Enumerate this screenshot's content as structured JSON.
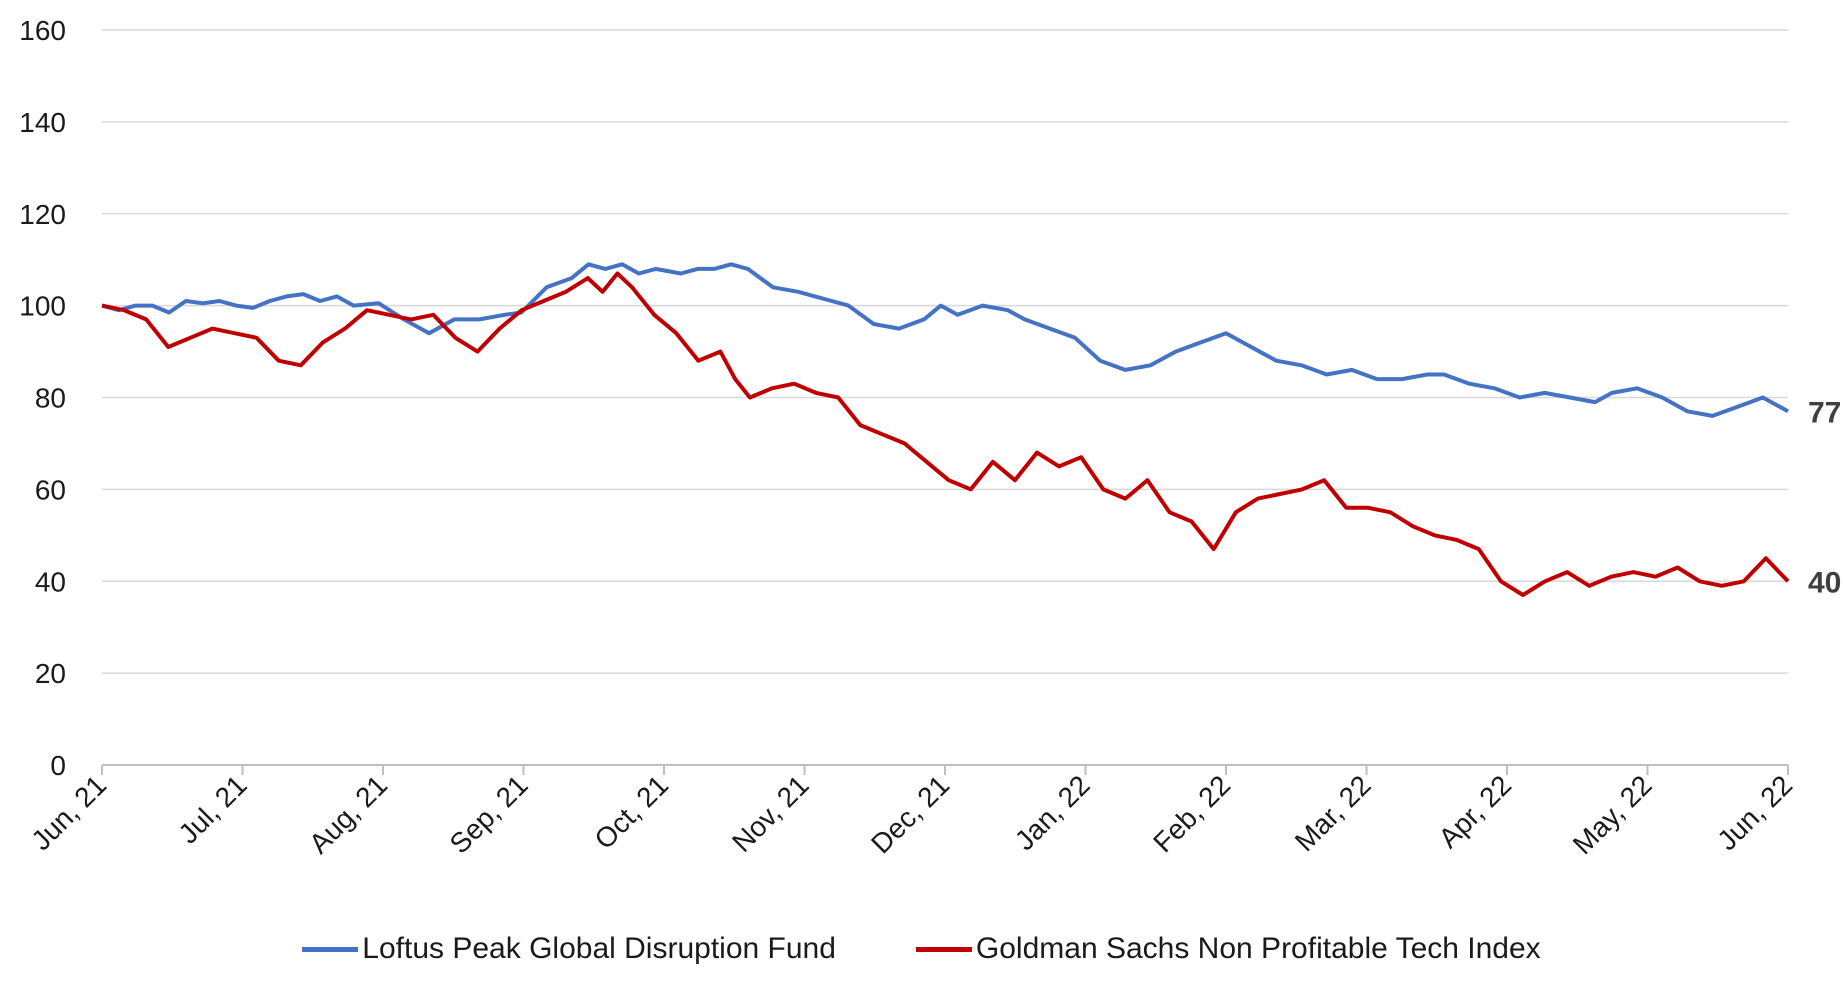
{
  "chart_data": {
    "type": "line",
    "ylim": [
      0,
      160
    ],
    "yticks": [
      "0",
      "20",
      "40",
      "60",
      "80",
      "100",
      "120",
      "140",
      "160"
    ],
    "xticks": [
      "Jun, 21",
      "Jul, 21",
      "Aug, 21",
      "Sep, 21",
      "Oct, 21",
      "Nov, 21",
      "Dec, 21",
      "Jan, 22",
      "Feb, 22",
      "Mar, 22",
      "Apr, 22",
      "May, 22",
      "Jun, 22"
    ],
    "grid": true,
    "legend_position": "bottom",
    "series": [
      {
        "name": "Loftus Peak Global Disruption Fund",
        "color": "#4472C4",
        "end_label": "77",
        "points": [
          [
            0,
            100
          ],
          [
            0.2,
            99
          ],
          [
            0.4,
            100
          ],
          [
            0.6,
            100
          ],
          [
            0.8,
            98.5
          ],
          [
            1.0,
            101
          ],
          [
            1.2,
            100.5
          ],
          [
            1.4,
            101
          ],
          [
            1.6,
            100
          ],
          [
            1.8,
            99.5
          ],
          [
            2.0,
            101
          ],
          [
            2.2,
            102
          ],
          [
            2.4,
            102.5
          ],
          [
            2.6,
            101
          ],
          [
            2.8,
            102
          ],
          [
            3.0,
            100
          ],
          [
            3.3,
            100.5
          ],
          [
            3.6,
            97
          ],
          [
            3.9,
            94
          ],
          [
            4.2,
            97
          ],
          [
            4.5,
            97
          ],
          [
            4.8,
            98
          ],
          [
            5.0,
            98.5
          ],
          [
            5.3,
            104
          ],
          [
            5.6,
            106
          ],
          [
            5.8,
            109
          ],
          [
            6.0,
            108
          ],
          [
            6.2,
            109
          ],
          [
            6.4,
            107
          ],
          [
            6.6,
            108
          ],
          [
            6.9,
            107
          ],
          [
            7.1,
            108
          ],
          [
            7.3,
            108
          ],
          [
            7.5,
            109
          ],
          [
            7.7,
            108
          ],
          [
            8.0,
            104
          ],
          [
            8.3,
            103
          ],
          [
            8.5,
            102
          ],
          [
            8.7,
            101
          ],
          [
            8.9,
            100
          ],
          [
            9.2,
            96
          ],
          [
            9.5,
            95
          ],
          [
            9.8,
            97
          ],
          [
            10.0,
            100
          ],
          [
            10.2,
            98
          ],
          [
            10.5,
            100
          ],
          [
            10.8,
            99
          ],
          [
            11.0,
            97
          ],
          [
            11.3,
            95
          ],
          [
            11.6,
            93
          ],
          [
            11.9,
            88
          ],
          [
            12.2,
            86
          ],
          [
            12.5,
            87
          ],
          [
            12.8,
            90
          ],
          [
            13.1,
            92
          ],
          [
            13.4,
            94
          ],
          [
            13.7,
            91
          ],
          [
            14.0,
            88
          ],
          [
            14.3,
            87
          ],
          [
            14.6,
            85
          ],
          [
            14.9,
            86
          ],
          [
            15.2,
            84
          ],
          [
            15.5,
            84
          ],
          [
            15.8,
            85
          ],
          [
            16.0,
            85
          ],
          [
            16.3,
            83
          ],
          [
            16.6,
            82
          ],
          [
            16.9,
            80
          ],
          [
            17.2,
            81
          ],
          [
            17.5,
            80
          ],
          [
            17.8,
            79
          ],
          [
            18.0,
            81
          ],
          [
            18.3,
            82
          ],
          [
            18.6,
            80
          ],
          [
            18.9,
            77
          ],
          [
            19.2,
            76
          ],
          [
            19.5,
            78
          ],
          [
            19.8,
            80
          ],
          [
            20.1,
            77
          ]
        ]
      },
      {
        "name": "Goldman Sachs Non Profitable Tech Index",
        "color": "#C00000",
        "end_label": "40",
        "points": [
          [
            0,
            100
          ],
          [
            0.3,
            99
          ],
          [
            0.6,
            97
          ],
          [
            0.9,
            91
          ],
          [
            1.2,
            93
          ],
          [
            1.5,
            95
          ],
          [
            1.8,
            94
          ],
          [
            2.1,
            93
          ],
          [
            2.4,
            88
          ],
          [
            2.7,
            87
          ],
          [
            3.0,
            92
          ],
          [
            3.3,
            95
          ],
          [
            3.6,
            99
          ],
          [
            3.9,
            98
          ],
          [
            4.2,
            97
          ],
          [
            4.5,
            98
          ],
          [
            4.8,
            93
          ],
          [
            5.1,
            90
          ],
          [
            5.4,
            95
          ],
          [
            5.7,
            99
          ],
          [
            6.0,
            101
          ],
          [
            6.3,
            103
          ],
          [
            6.6,
            106
          ],
          [
            6.8,
            103
          ],
          [
            7.0,
            107
          ],
          [
            7.2,
            104
          ],
          [
            7.5,
            98
          ],
          [
            7.8,
            94
          ],
          [
            8.1,
            88
          ],
          [
            8.4,
            90
          ],
          [
            8.6,
            84
          ],
          [
            8.8,
            80
          ],
          [
            9.1,
            82
          ],
          [
            9.4,
            83
          ],
          [
            9.7,
            81
          ],
          [
            10.0,
            80
          ],
          [
            10.3,
            74
          ],
          [
            10.6,
            72
          ],
          [
            10.9,
            70
          ],
          [
            11.2,
            66
          ],
          [
            11.5,
            62
          ],
          [
            11.8,
            60
          ],
          [
            12.1,
            66
          ],
          [
            12.4,
            62
          ],
          [
            12.7,
            68
          ],
          [
            13.0,
            65
          ],
          [
            13.3,
            67
          ],
          [
            13.6,
            60
          ],
          [
            13.9,
            58
          ],
          [
            14.2,
            62
          ],
          [
            14.5,
            55
          ],
          [
            14.8,
            53
          ],
          [
            15.1,
            47
          ],
          [
            15.4,
            55
          ],
          [
            15.7,
            58
          ],
          [
            16.0,
            59
          ],
          [
            16.3,
            60
          ],
          [
            16.6,
            62
          ],
          [
            16.9,
            56
          ],
          [
            17.2,
            56
          ],
          [
            17.5,
            55
          ],
          [
            17.8,
            52
          ],
          [
            18.1,
            50
          ],
          [
            18.4,
            49
          ],
          [
            18.7,
            47
          ],
          [
            19.0,
            40
          ],
          [
            19.3,
            37
          ],
          [
            19.6,
            40
          ],
          [
            19.9,
            42
          ],
          [
            20.2,
            39
          ],
          [
            20.5,
            41
          ],
          [
            20.8,
            42
          ],
          [
            21.1,
            41
          ],
          [
            21.4,
            43
          ],
          [
            21.7,
            40
          ],
          [
            22.0,
            39
          ],
          [
            22.3,
            40
          ],
          [
            22.6,
            45
          ],
          [
            22.9,
            40
          ]
        ]
      }
    ]
  }
}
